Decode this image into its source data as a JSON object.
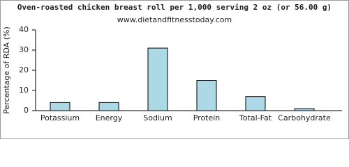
{
  "chart_data": {
    "type": "bar",
    "title": "Oven-roasted chicken breast roll per 1,000 serving 2 oz (or 56.00 g)",
    "subtitle": "www.dietandfitnesstoday.com",
    "y_label": "Percentage of RDA (%)",
    "categories": [
      "Potassium",
      "Energy",
      "Sodium",
      "Protein",
      "Total-Fat",
      "Carbohydrate"
    ],
    "values": [
      4,
      4,
      31,
      15,
      7,
      1
    ],
    "color": "#add8e6",
    "ylim": [
      0,
      40
    ],
    "yticks": [
      0,
      10,
      20,
      30,
      40
    ],
    "grid": false
  }
}
